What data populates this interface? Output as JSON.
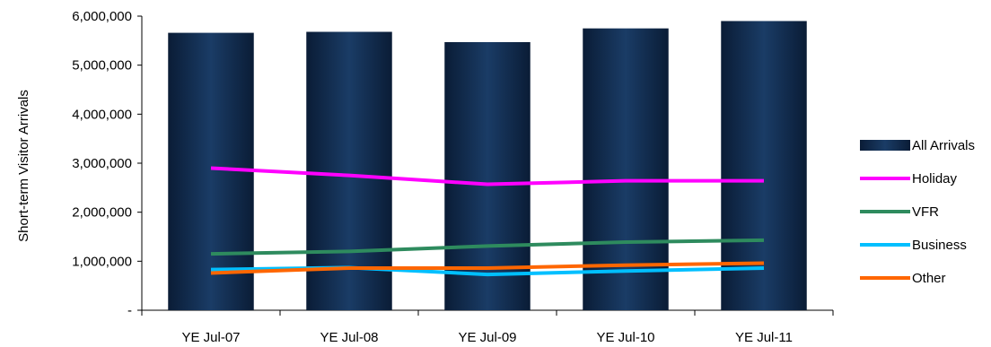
{
  "chart_data": {
    "type": "bar",
    "categories": [
      "YE Jul-07",
      "YE Jul-08",
      "YE Jul-09",
      "YE Jul-10",
      "YE Jul-11"
    ],
    "ylabel": "Short-term Visitor Arrivals",
    "xlabel": "",
    "ylim": [
      0,
      6000000
    ],
    "yticks": [
      {
        "value": 0,
        "label": "-"
      },
      {
        "value": 1000000,
        "label": "1,000,000"
      },
      {
        "value": 2000000,
        "label": "2,000,000"
      },
      {
        "value": 3000000,
        "label": "3,000,000"
      },
      {
        "value": 4000000,
        "label": "4,000,000"
      },
      {
        "value": 5000000,
        "label": "5,000,000"
      },
      {
        "value": 6000000,
        "label": "6,000,000"
      }
    ],
    "grid": false,
    "legend_position": "right",
    "bar_series": {
      "name": "All Arrivals",
      "color": "#0f2a4d",
      "values": [
        5660000,
        5680000,
        5470000,
        5750000,
        5900000
      ]
    },
    "line_series": [
      {
        "name": "Holiday",
        "color": "#ff00ff",
        "values": [
          2900000,
          2750000,
          2570000,
          2640000,
          2640000
        ]
      },
      {
        "name": "VFR",
        "color": "#2e8b5e",
        "values": [
          1150000,
          1200000,
          1310000,
          1390000,
          1430000
        ]
      },
      {
        "name": "Business",
        "color": "#00bfff",
        "values": [
          830000,
          870000,
          730000,
          800000,
          860000
        ]
      },
      {
        "name": "Other",
        "color": "#ff6600",
        "values": [
          760000,
          860000,
          860000,
          920000,
          960000
        ]
      }
    ]
  }
}
